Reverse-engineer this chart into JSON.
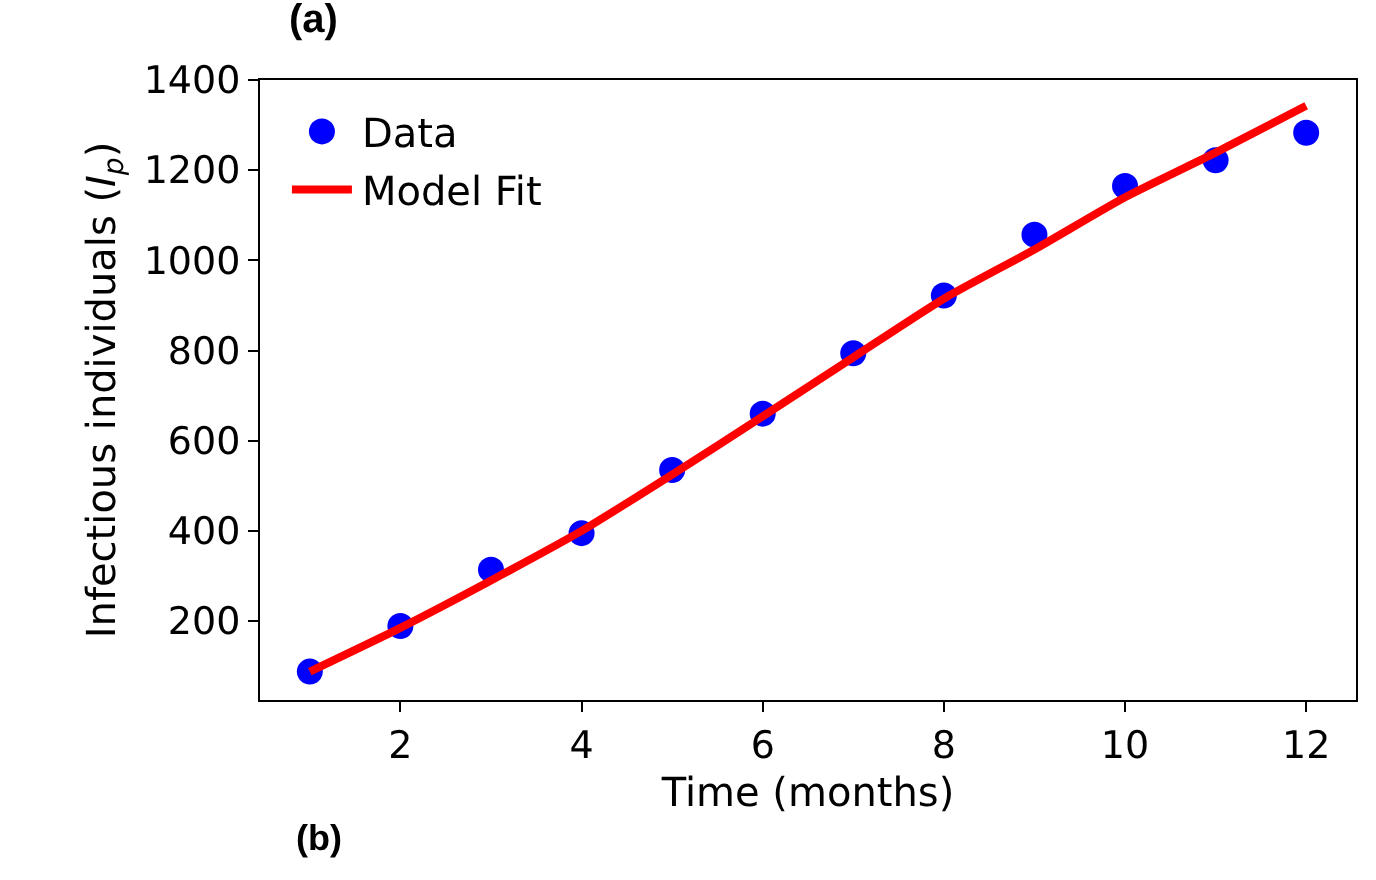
{
  "chart_data": {
    "type": "scatter",
    "title": "(a)",
    "xlabel": "Time (months)",
    "ylabel": "Infectious individuals (I$_{p}$)",
    "x": [
      1,
      2,
      3,
      4,
      5,
      6,
      7,
      8,
      9,
      10,
      11,
      12
    ],
    "series": [
      {
        "name": "Data",
        "color": "#0000ff",
        "marker": "circle",
        "values": [
          88,
          189,
          314,
          395,
          535,
          660,
          794,
          922,
          1057,
          1165,
          1222,
          1283
        ]
      },
      {
        "name": "Model Fit",
        "type": "line",
        "color": "#ff0000",
        "line_style": "solid",
        "marker": "none",
        "values": [
          88,
          185,
          290,
          400,
          525,
          654,
          785,
          915,
          1024,
          1140,
          1239,
          1343
        ]
      }
    ],
    "xlim": [
      0.45,
      12.55
    ],
    "ylim": [
      25,
      1400
    ],
    "xticks": [
      2,
      4,
      6,
      8,
      10,
      12
    ],
    "yticks": [
      200,
      400,
      600,
      800,
      1000,
      1200,
      1400
    ],
    "grid": false,
    "legend": "top left",
    "annotations": [
      "(b)"
    ]
  }
}
